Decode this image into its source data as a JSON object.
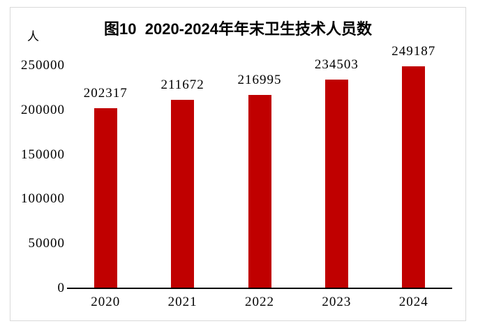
{
  "title": "图10  2020-2024年年末卫生技术人员数",
  "unit_label": "人",
  "colors": {
    "bar": "#c00000",
    "axis": "#000000",
    "text": "#000000",
    "frame_border": "#d9d9d9",
    "background": "#ffffff"
  },
  "chart_data": {
    "type": "bar",
    "title": "图10  2020-2024年年末卫生技术人员数",
    "categories": [
      "2020",
      "2021",
      "2022",
      "2023",
      "2024"
    ],
    "values": [
      202317,
      211672,
      216995,
      234503,
      249187
    ],
    "xlabel": "",
    "ylabel": "人",
    "yticks": [
      0,
      50000,
      100000,
      150000,
      200000,
      250000
    ],
    "ylim": [
      0,
      250000
    ],
    "bar_color": "#c00000",
    "data_labels": true,
    "grid": false,
    "legend_position": "none"
  }
}
